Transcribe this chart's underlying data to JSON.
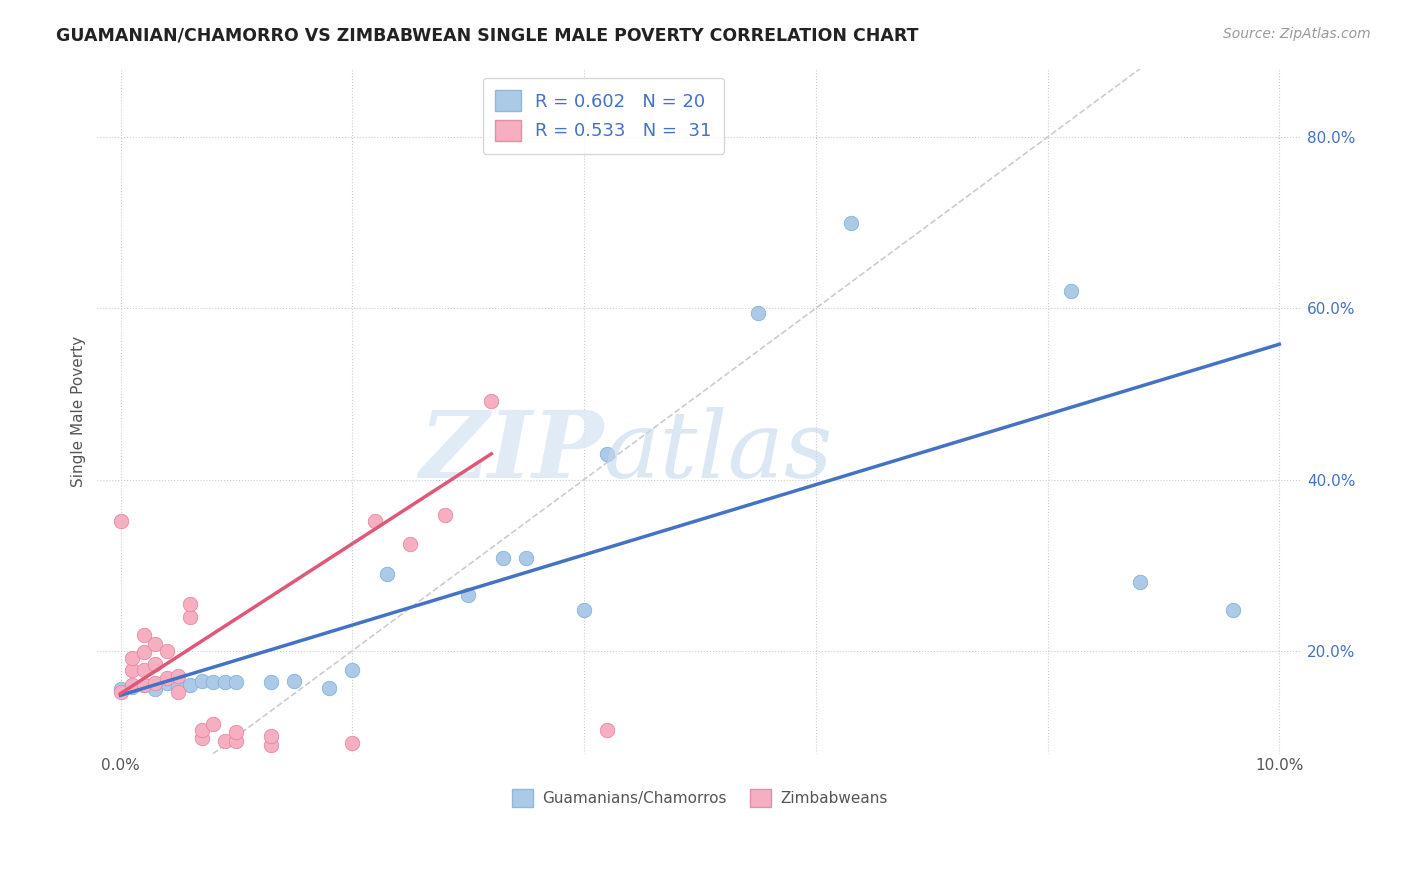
{
  "title": "GUAMANIAN/CHAMORRO VS ZIMBABWEAN SINGLE MALE POVERTY CORRELATION CHART",
  "source": "Source: ZipAtlas.com",
  "ylabel": "Single Male Poverty",
  "legend_label1": "Guamanians/Chamorros",
  "legend_label2": "Zimbabweans",
  "xlim": [
    -0.002,
    0.102
  ],
  "ylim": [
    0.08,
    0.88
  ],
  "x_ticks": [
    0.0,
    0.02,
    0.04,
    0.06,
    0.08,
    0.1
  ],
  "x_tick_labels": [
    "0.0%",
    "",
    "",
    "",
    "",
    "10.0%"
  ],
  "y_ticks_right": [
    0.2,
    0.4,
    0.6,
    0.8
  ],
  "y_tick_labels_right": [
    "20.0%",
    "40.0%",
    "60.0%",
    "80.0%"
  ],
  "color_blue": "#adc9e8",
  "color_pink": "#f5afc0",
  "line_blue": "#4472c4",
  "line_pink": "#e05878",
  "diagonal_color": "#cccccc",
  "background_color": "#ffffff",
  "blue_dots": [
    [
      0.0,
      0.155
    ],
    [
      0.001,
      0.158
    ],
    [
      0.002,
      0.16
    ],
    [
      0.003,
      0.155
    ],
    [
      0.004,
      0.162
    ],
    [
      0.005,
      0.158
    ],
    [
      0.006,
      0.16
    ],
    [
      0.007,
      0.165
    ],
    [
      0.008,
      0.163
    ],
    [
      0.009,
      0.163
    ],
    [
      0.01,
      0.163
    ],
    [
      0.013,
      0.163
    ],
    [
      0.015,
      0.165
    ],
    [
      0.018,
      0.157
    ],
    [
      0.02,
      0.178
    ],
    [
      0.023,
      0.29
    ],
    [
      0.03,
      0.265
    ],
    [
      0.033,
      0.308
    ],
    [
      0.035,
      0.308
    ],
    [
      0.04,
      0.248
    ],
    [
      0.042,
      0.43
    ],
    [
      0.055,
      0.595
    ],
    [
      0.063,
      0.7
    ],
    [
      0.082,
      0.62
    ],
    [
      0.088,
      0.28
    ],
    [
      0.096,
      0.248
    ]
  ],
  "pink_dots": [
    [
      0.0,
      0.152
    ],
    [
      0.001,
      0.16
    ],
    [
      0.001,
      0.178
    ],
    [
      0.001,
      0.192
    ],
    [
      0.002,
      0.16
    ],
    [
      0.002,
      0.178
    ],
    [
      0.002,
      0.198
    ],
    [
      0.002,
      0.218
    ],
    [
      0.003,
      0.162
    ],
    [
      0.003,
      0.185
    ],
    [
      0.003,
      0.208
    ],
    [
      0.004,
      0.168
    ],
    [
      0.004,
      0.2
    ],
    [
      0.005,
      0.152
    ],
    [
      0.005,
      0.17
    ],
    [
      0.006,
      0.24
    ],
    [
      0.006,
      0.255
    ],
    [
      0.007,
      0.098
    ],
    [
      0.007,
      0.108
    ],
    [
      0.008,
      0.115
    ],
    [
      0.009,
      0.095
    ],
    [
      0.01,
      0.095
    ],
    [
      0.01,
      0.105
    ],
    [
      0.013,
      0.09
    ],
    [
      0.013,
      0.1
    ],
    [
      0.02,
      0.092
    ],
    [
      0.0,
      0.352
    ],
    [
      0.022,
      0.352
    ],
    [
      0.025,
      0.325
    ],
    [
      0.028,
      0.358
    ],
    [
      0.032,
      0.492
    ],
    [
      0.042,
      0.108
    ]
  ],
  "blue_line_x": [
    0.0,
    0.1
  ],
  "blue_line_y": [
    0.148,
    0.558
  ],
  "pink_line_x": [
    0.0,
    0.032
  ],
  "pink_line_y": [
    0.15,
    0.43
  ]
}
